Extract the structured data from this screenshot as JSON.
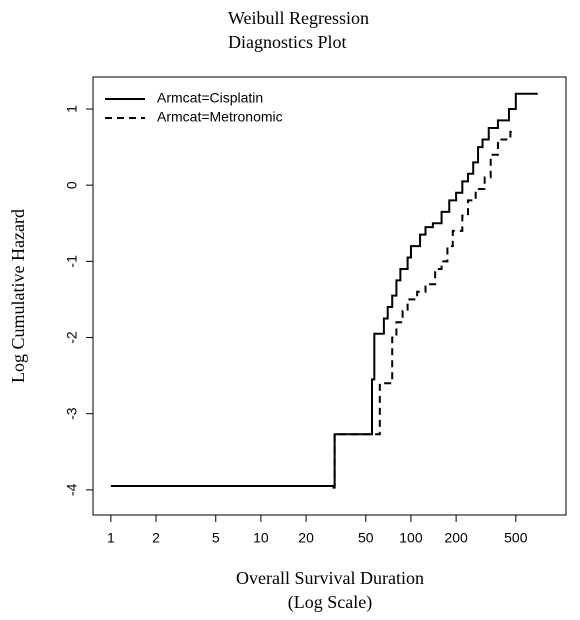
{
  "chart_data": {
    "type": "step",
    "title": [
      "Weibull Regression",
      "Diagnostics Plot"
    ],
    "xlabel": [
      "Overall Survival Duration",
      "(Log Scale)"
    ],
    "ylabel": "Log Cumulative Hazard",
    "xscale": "log",
    "xlim": [
      0.76,
      1080
    ],
    "ylim": [
      -4.33,
      1.42
    ],
    "xticks": [
      1,
      2,
      5,
      10,
      20,
      50,
      100,
      200,
      500
    ],
    "yticks": [
      -4,
      -3,
      -2,
      -1,
      0,
      1
    ],
    "legend": "top-left",
    "series": [
      {
        "name": "Armcat=Cisplatin",
        "color": "#000000",
        "dash": "solid",
        "x": [
          1,
          31,
          55,
          57,
          66,
          70,
          75,
          80,
          85,
          95,
          100,
          115,
          125,
          140,
          160,
          180,
          200,
          220,
          240,
          260,
          280,
          300,
          330,
          380,
          450,
          500,
          700
        ],
        "y": [
          -3.95,
          -3.27,
          -2.55,
          -1.95,
          -1.75,
          -1.6,
          -1.45,
          -1.25,
          -1.1,
          -0.95,
          -0.8,
          -0.65,
          -0.55,
          -0.5,
          -0.35,
          -0.2,
          -0.1,
          0.05,
          0.15,
          0.3,
          0.5,
          0.6,
          0.75,
          0.85,
          1.0,
          1.2,
          1.2
        ]
      },
      {
        "name": "Armcat=Metronomic",
        "color": "#000000",
        "dash": "dashed",
        "x": [
          30,
          31,
          62,
          75,
          80,
          88,
          95,
          110,
          125,
          145,
          160,
          175,
          190,
          220,
          240,
          270,
          310,
          340,
          380,
          460,
          500
        ],
        "y": [
          -3.97,
          -3.27,
          -2.6,
          -2.0,
          -1.8,
          -1.65,
          -1.5,
          -1.4,
          -1.3,
          -1.1,
          -1.0,
          -0.8,
          -0.6,
          -0.4,
          -0.2,
          -0.05,
          0.1,
          0.4,
          0.6,
          0.7,
          0.7
        ]
      }
    ]
  }
}
